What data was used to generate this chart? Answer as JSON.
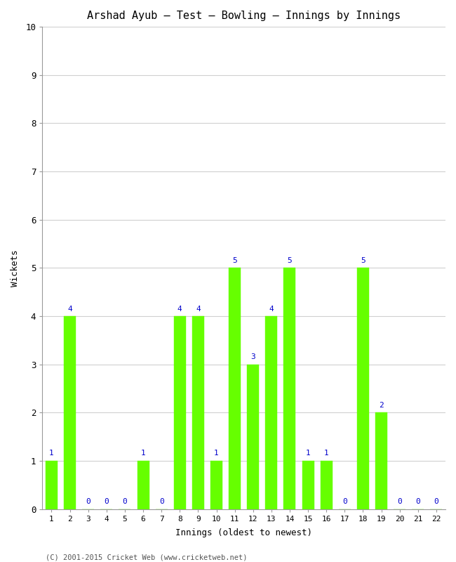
{
  "title": "Arshad Ayub – Test – Bowling – Innings by Innings",
  "xlabel": "Innings (oldest to newest)",
  "ylabel": "Wickets",
  "categories": [
    "1",
    "2",
    "3",
    "4",
    "5",
    "6",
    "7",
    "8",
    "9",
    "10",
    "11",
    "12",
    "13",
    "14",
    "15",
    "16",
    "17",
    "18",
    "19",
    "20",
    "21",
    "22"
  ],
  "values": [
    1,
    4,
    0,
    0,
    0,
    1,
    0,
    4,
    4,
    1,
    5,
    3,
    4,
    5,
    1,
    1,
    0,
    5,
    2,
    0,
    0,
    0
  ],
  "bar_color": "#66ff00",
  "label_color": "#0000cc",
  "background_color": "#ffffff",
  "ylim": [
    0,
    10
  ],
  "yticks": [
    0,
    1,
    2,
    3,
    4,
    5,
    6,
    7,
    8,
    9,
    10
  ],
  "grid_color": "#d0d0d0",
  "footer": "(C) 2001-2015 Cricket Web (www.cricketweb.net)",
  "title_fontsize": 11,
  "axis_label_fontsize": 9,
  "tick_fontsize": 8,
  "value_label_fontsize": 8
}
